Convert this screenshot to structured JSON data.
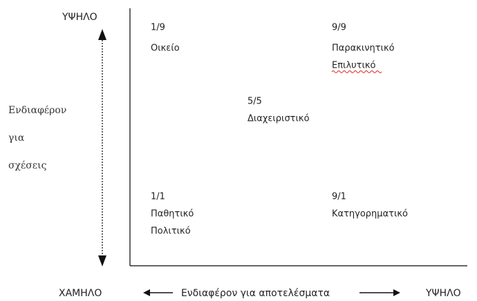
{
  "y_axis": {
    "high": "ΥΨΗΛΟ",
    "label_lines": [
      "Ενδιαφέρον",
      "για",
      "σχέσεις"
    ]
  },
  "x_axis": {
    "low": "ΧΑΜΗΛΟ",
    "label": "Ενδιαφέρον για αποτελέσματα",
    "high": "ΥΨΗΛΟ"
  },
  "cells": [
    {
      "code": "1/9",
      "lines": [
        "Οικείο"
      ]
    },
    {
      "code": "9/9",
      "lines": [
        "Παρακινητικό",
        "Επιλυτικό"
      ]
    },
    {
      "code": "5/5",
      "lines": [
        "Διαχειριστικό"
      ]
    },
    {
      "code": "1/1",
      "lines": [
        "Παθητικό",
        "Πολιτικό"
      ]
    },
    {
      "code": "9/1",
      "lines": [
        "Κατηγορηματικό"
      ]
    }
  ]
}
